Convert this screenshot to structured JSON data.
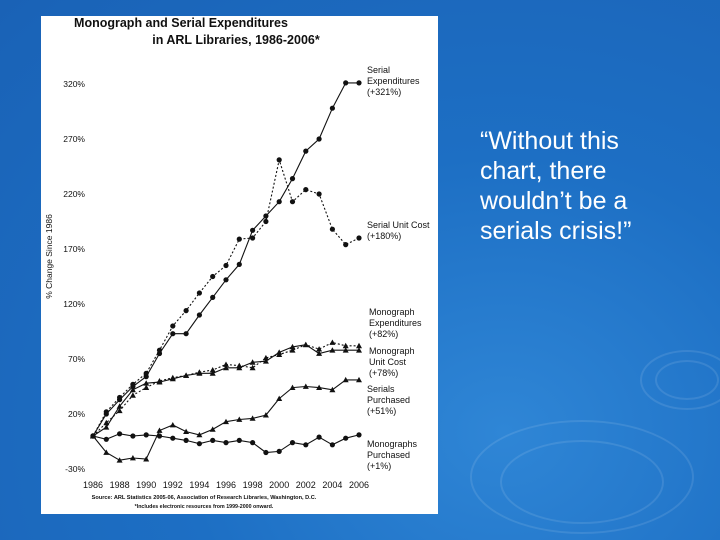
{
  "slide": {
    "quote_lines": [
      "“Without this",
      "chart, there",
      "wouldn’t be a",
      "serials crisis!”"
    ]
  },
  "chart_data": {
    "type": "line",
    "title": [
      "Monograph and Serial Expenditures",
      "in ARL Libraries, 1986-2006*"
    ],
    "ylabel": "% Change Since 1986",
    "xlabel": "",
    "ylim": [
      -30,
      320
    ],
    "yticks": [
      -30,
      20,
      70,
      120,
      170,
      220,
      270,
      320
    ],
    "ytick_labels": [
      "-30%",
      "20%",
      "70%",
      "120%",
      "170%",
      "220%",
      "270%",
      "320%"
    ],
    "x": [
      1986,
      1987,
      1988,
      1989,
      1990,
      1991,
      1992,
      1993,
      1994,
      1995,
      1996,
      1997,
      1998,
      1999,
      2000,
      2001,
      2002,
      2003,
      2004,
      2005,
      2006
    ],
    "xticks": [
      1986,
      1988,
      1990,
      1992,
      1994,
      1996,
      1998,
      2000,
      2002,
      2004,
      2006
    ],
    "series": [
      {
        "name": "Serial Expenditures",
        "label_lines": [
          "Serial",
          "Expenditures",
          "(+321%)"
        ],
        "marker": "circle",
        "dash": "solid",
        "values": [
          0,
          20,
          33,
          45,
          54,
          75,
          93,
          93,
          110,
          126,
          142,
          156,
          187,
          200,
          213,
          234,
          259,
          270,
          298,
          321,
          321
        ]
      },
      {
        "name": "Serial Unit Cost",
        "label_lines": [
          "Serial Unit Cost",
          "(+180%)"
        ],
        "marker": "circle",
        "dash": "dotted",
        "values": [
          0,
          22,
          35,
          47,
          57,
          78,
          100,
          114,
          130,
          145,
          155,
          179,
          180,
          195,
          251,
          213,
          224,
          220,
          188,
          174,
          180
        ]
      },
      {
        "name": "Monograph Expenditures",
        "label_lines": [
          "Monograph",
          "Expenditures",
          "(+82%)"
        ],
        "marker": "triangle",
        "dash": "dotted",
        "values": [
          0,
          12,
          23,
          37,
          44,
          50,
          53,
          55,
          58,
          60,
          65,
          64,
          62,
          71,
          74,
          78,
          83,
          79,
          85,
          82,
          82
        ]
      },
      {
        "name": "Monograph Unit Cost",
        "label_lines": [
          "Monograph",
          "Unit Cost",
          "(+78%)"
        ],
        "marker": "triangle",
        "dash": "solid",
        "values": [
          0,
          8,
          27,
          42,
          48,
          49,
          52,
          55,
          57,
          57,
          62,
          62,
          67,
          68,
          76,
          81,
          83,
          75,
          78,
          78,
          78
        ]
      },
      {
        "name": "Serials Purchased",
        "label_lines": [
          "Serials",
          "Purchased",
          "(+51%)"
        ],
        "marker": "triangle",
        "dash": "solid",
        "values": [
          0,
          -15,
          -22,
          -20,
          -21,
          5,
          10,
          4,
          1,
          6,
          13,
          15,
          16,
          19,
          34,
          44,
          45,
          44,
          42,
          51,
          51
        ]
      },
      {
        "name": "Monographs Purchased",
        "label_lines": [
          "Monographs",
          "Purchased",
          "(+1%)"
        ],
        "marker": "circle",
        "dash": "solid",
        "values": [
          0,
          -3,
          2,
          0,
          1,
          0,
          -2,
          -4,
          -7,
          -4,
          -6,
          -4,
          -6,
          -15,
          -14,
          -6,
          -8,
          -1,
          -8,
          -2,
          1
        ]
      }
    ],
    "source_lines": [
      "Source: ARL Statistics 2005-06, Association of Research Libraries, Washington, D.C.",
      "*Includes electronic resources from 1999-2000 onward."
    ]
  },
  "colors": {
    "background": "#1d6fc4",
    "panel": "#ffffff",
    "ink": "#111111",
    "text": "#ffffff"
  }
}
